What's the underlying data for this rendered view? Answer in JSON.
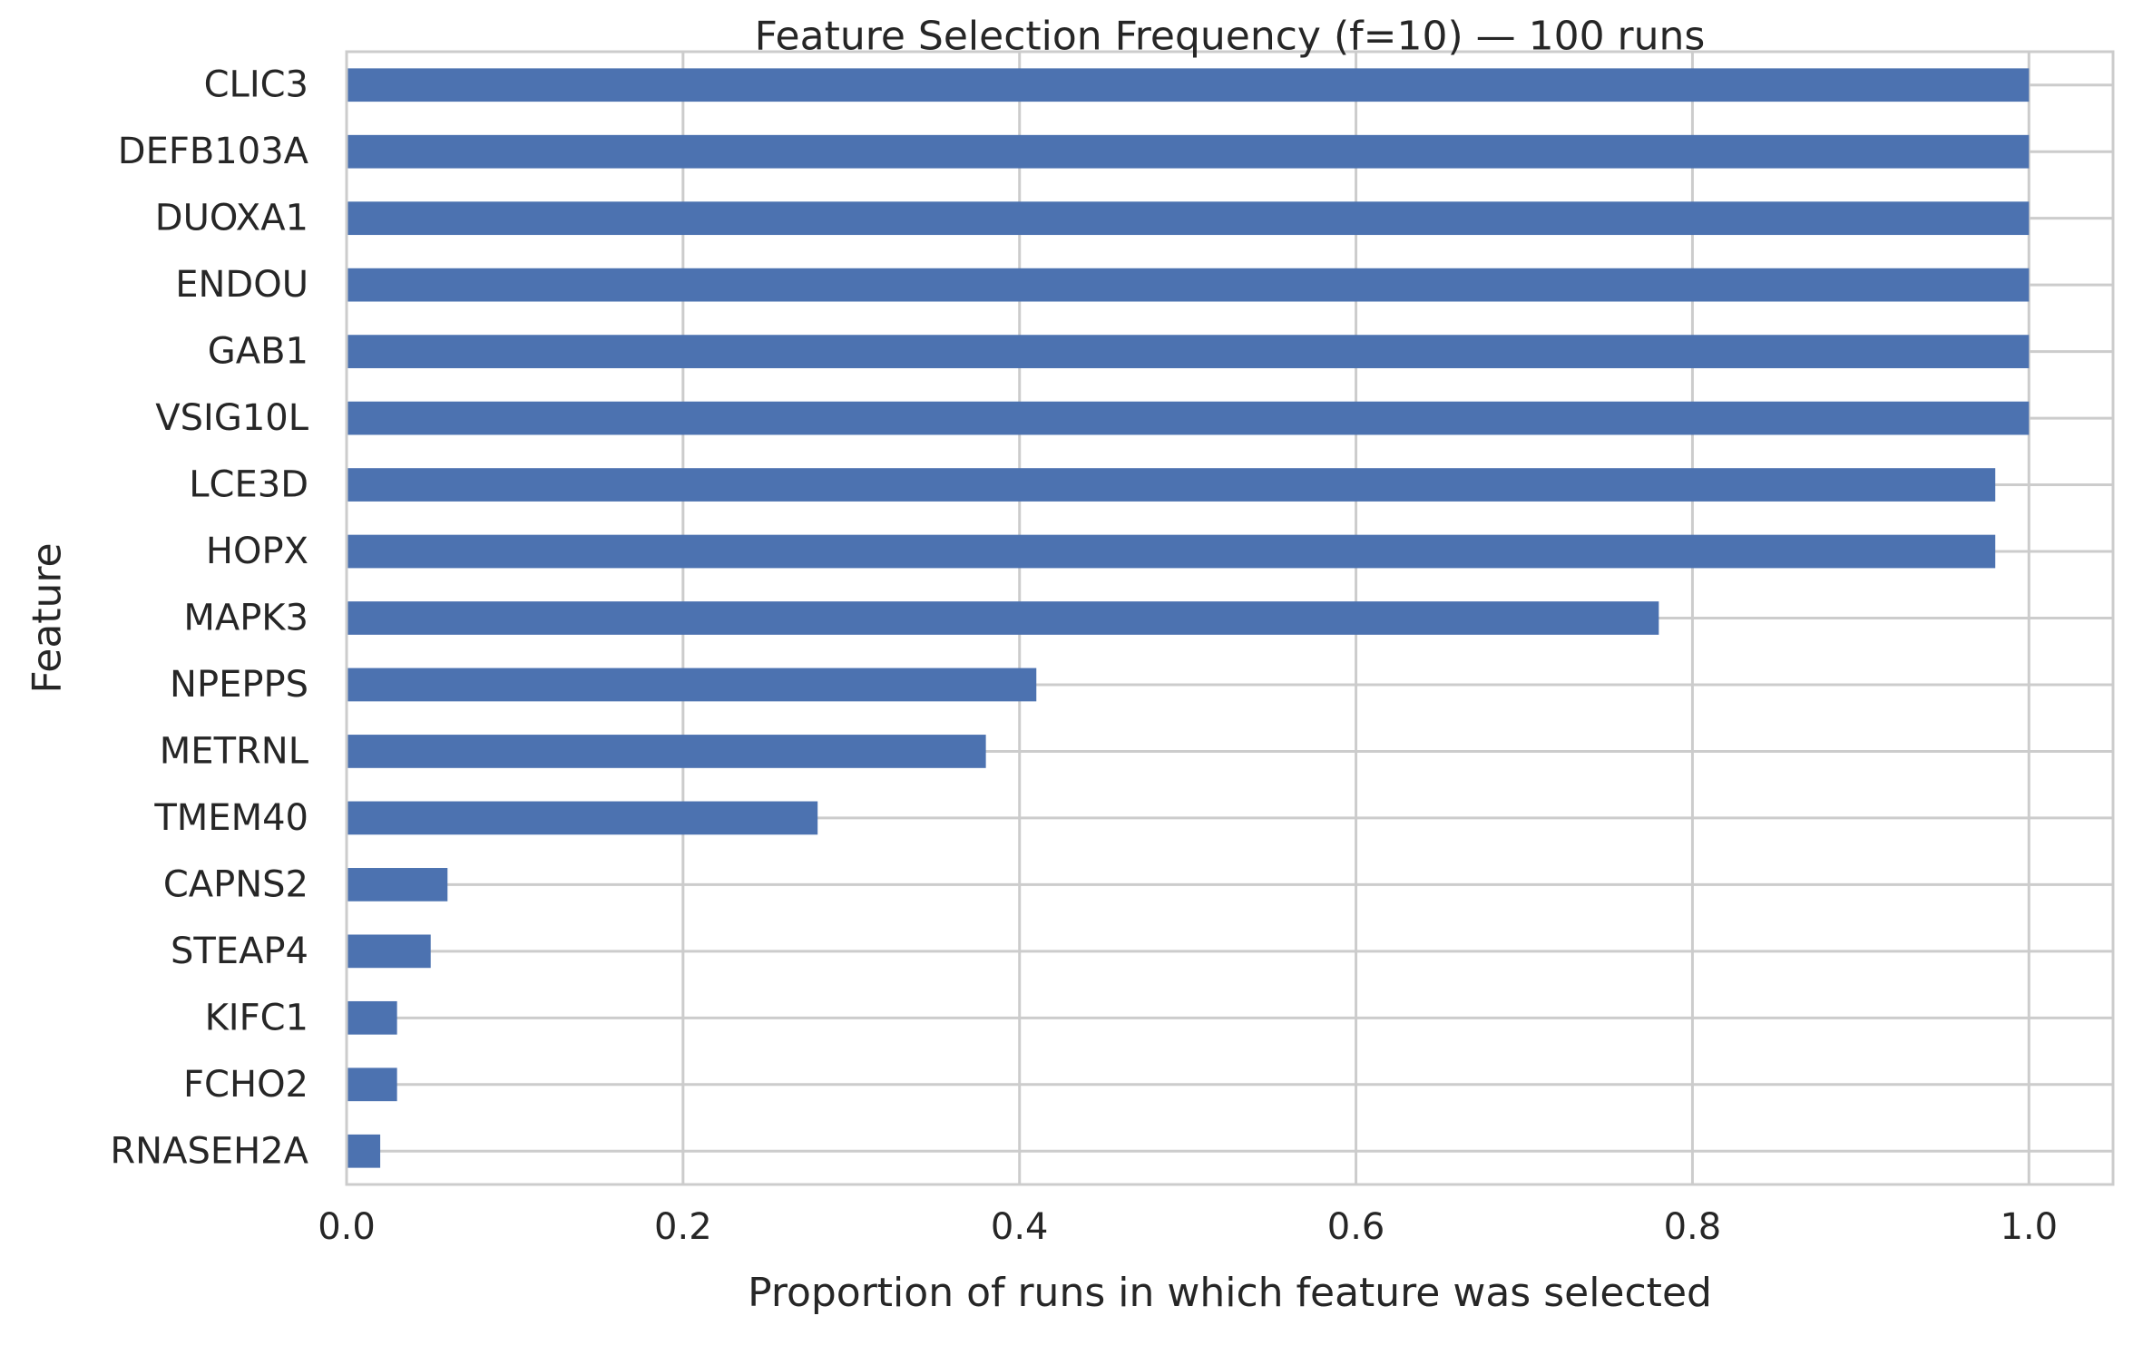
{
  "chart_data": {
    "type": "bar",
    "orientation": "horizontal",
    "title": "Feature Selection Frequency (f=10) — 100 runs",
    "xlabel": "Proportion of runs in which feature was selected",
    "ylabel": "Feature",
    "xlim": [
      0.0,
      1.05
    ],
    "xticks": [
      0.0,
      0.2,
      0.4,
      0.6,
      0.8,
      1.0
    ],
    "xtick_labels": [
      "0.0",
      "0.2",
      "0.4",
      "0.6",
      "0.8",
      "1.0"
    ],
    "grid": true,
    "legend": "none",
    "bar_color": "#4c72b0",
    "categories": [
      "CLIC3",
      "DEFB103A",
      "DUOXA1",
      "ENDOU",
      "GAB1",
      "VSIG10L",
      "LCE3D",
      "HOPX",
      "MAPK3",
      "NPEPPS",
      "METRNL",
      "TMEM40",
      "CAPNS2",
      "STEAP4",
      "KIFC1",
      "FCHO2",
      "RNASEH2A"
    ],
    "values": [
      1.0,
      1.0,
      1.0,
      1.0,
      1.0,
      1.0,
      0.98,
      0.98,
      0.78,
      0.41,
      0.38,
      0.28,
      0.06,
      0.05,
      0.03,
      0.03,
      0.02
    ]
  }
}
